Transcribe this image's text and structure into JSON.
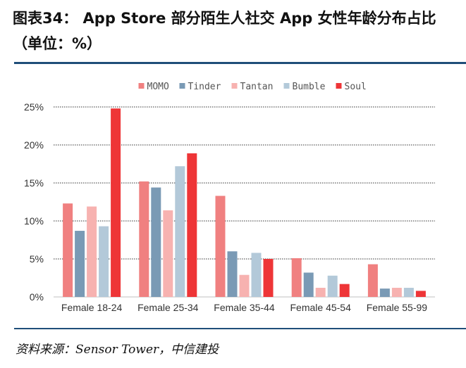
{
  "page": {
    "title": "图表34：  App Store 部分陌生人社交 App 女性年龄分布占比（单位：%）",
    "source": "资料来源：Sensor Tower，中信建投"
  },
  "chart_data": {
    "type": "bar",
    "categories": [
      "Female 18-24",
      "Female 25-34",
      "Female 35-44",
      "Female 45-54",
      "Female 55-99"
    ],
    "series": [
      {
        "name": "MOMO",
        "color": "#f08080",
        "values": [
          12.3,
          15.2,
          13.3,
          5.1,
          4.3
        ]
      },
      {
        "name": "Tinder",
        "color": "#7a9ab5",
        "values": [
          8.7,
          14.4,
          6.0,
          3.2,
          1.1
        ]
      },
      {
        "name": "Tantan",
        "color": "#f7b2b0",
        "values": [
          11.9,
          11.4,
          2.9,
          1.2,
          1.2
        ]
      },
      {
        "name": "Bumble",
        "color": "#b3c9d9",
        "values": [
          9.3,
          17.2,
          5.8,
          2.8,
          1.2
        ]
      },
      {
        "name": "Soul",
        "color": "#ee3537",
        "values": [
          24.8,
          18.9,
          5.0,
          1.7,
          0.8
        ]
      }
    ],
    "yticks": [
      0,
      5,
      10,
      15,
      20,
      25
    ],
    "ytick_labels": [
      "0%",
      "5%",
      "10%",
      "15%",
      "20%",
      "25%"
    ],
    "ylim": [
      0,
      25
    ],
    "xlabel": "",
    "ylabel": "",
    "grid": true,
    "legend_position": "top-center"
  }
}
